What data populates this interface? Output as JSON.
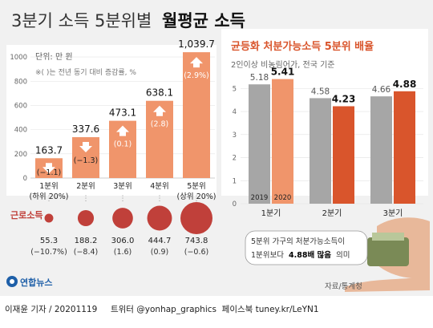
{
  "title": {
    "light": "3분기 소득 5분위별",
    "bold": "월평균 소득"
  },
  "left_chart": {
    "unit": "단위: 만 원",
    "note": "※( )는 전년 동기 대비 증감률, %",
    "side_label": "근로소득"
  },
  "right_chart": {
    "title": "균등화 처분가능소득 5분위 배율",
    "subtitle": "2인이상 비농림어가, 전국 기준"
  },
  "callout": {
    "line1": "5분위 가구의 처분가능소득이",
    "line2_pre": "1분위보다",
    "line2_bold": "4.88배 많음",
    "line2_post": "의미"
  },
  "source": "자료/통계청",
  "logo": "연합뉴스",
  "credit": "이재윤 기자 / 20201119     트위터 @yonhap_graphics  페이스북 tuney.kr/LeYN1",
  "colors": {
    "bar_orange": "#f0956b",
    "accent_red": "#d9552c",
    "gray_bar": "#a6a6a6",
    "bubble": "#c0403a",
    "arrow_white": "#ffffff"
  },
  "chart_data": [
    {
      "type": "bar",
      "title": "",
      "categories": [
        "1분위\n(하위 20%)",
        "2분위",
        "3분위",
        "4분위",
        "5분위\n(상위 20%)"
      ],
      "values": [
        163.7,
        337.6,
        473.1,
        638.1,
        1039.7
      ],
      "change_labels": [
        "(−1.1)",
        "(−1.3)",
        "(0.1)",
        "(2.8)",
        "(2.9%)"
      ],
      "value_labels": [
        "163.7",
        "337.6",
        "473.1",
        "638.1",
        "1,039.7"
      ],
      "change_arrow": [
        "down",
        "down",
        "up",
        "up",
        "up"
      ],
      "ylim": [
        0,
        1100
      ],
      "yticks": [
        0,
        200,
        400,
        600,
        800,
        1000
      ],
      "ylabel": "",
      "xlabel": ""
    },
    {
      "type": "scatter",
      "title": "근로소득",
      "categories": [
        "1분위",
        "2분위",
        "3분위",
        "4분위",
        "5분위"
      ],
      "values": [
        55.3,
        188.2,
        306.0,
        444.7,
        743.8
      ],
      "value_labels": [
        "55.3",
        "188.2",
        "306.0",
        "444.7",
        "743.8"
      ],
      "change_labels": [
        "(−10.7%)",
        "(−8.4)",
        "(1.6)",
        "(0.9)",
        "(−0.6)"
      ]
    },
    {
      "type": "bar",
      "title": "균등화 처분가능소득 5분위 배율",
      "categories": [
        "1분기",
        "2분기",
        "3분기"
      ],
      "series": [
        {
          "name": "2019",
          "values": [
            5.18,
            4.58,
            4.66
          ]
        },
        {
          "name": "2020",
          "values": [
            5.41,
            4.23,
            4.88
          ]
        }
      ],
      "value_labels": [
        [
          "5.18",
          "4.58",
          "4.66"
        ],
        [
          "5.41",
          "4.23",
          "4.88"
        ]
      ],
      "ylim": [
        0,
        5.5
      ],
      "yticks": [
        0,
        1,
        2,
        3,
        4,
        5
      ],
      "xlabel": "",
      "ylabel": ""
    }
  ]
}
